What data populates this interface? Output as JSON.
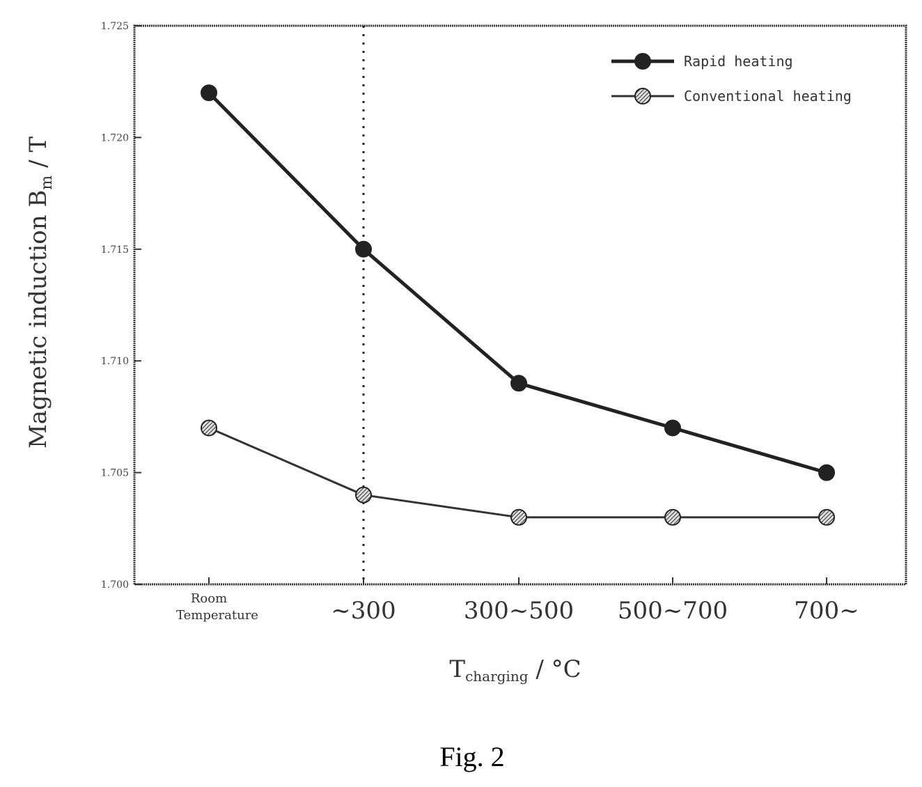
{
  "chart_data": {
    "type": "line",
    "categories": [
      "Room\nTemperature",
      "~300",
      "300~500",
      "500~700",
      "700~"
    ],
    "series": [
      {
        "name": "Rapid heating",
        "values": [
          1.722,
          1.715,
          1.709,
          1.707,
          1.705
        ],
        "color": "#222222",
        "marker": "filled-circle"
      },
      {
        "name": "Conventional heating",
        "values": [
          1.707,
          1.704,
          1.703,
          1.703,
          1.703
        ],
        "color": "#333333",
        "marker": "hatched-circle"
      }
    ],
    "ylim": [
      1.7,
      1.725
    ],
    "yticks": [
      "1.700",
      "1.705",
      "1.710",
      "1.715",
      "1.720",
      "1.725"
    ],
    "ylabel": "Magnetic induction B_m / T",
    "xlabel": "T_charging / °C",
    "vline_category": "~300",
    "legend_position": "top-right",
    "grid": false
  },
  "caption": "Fig. 2"
}
